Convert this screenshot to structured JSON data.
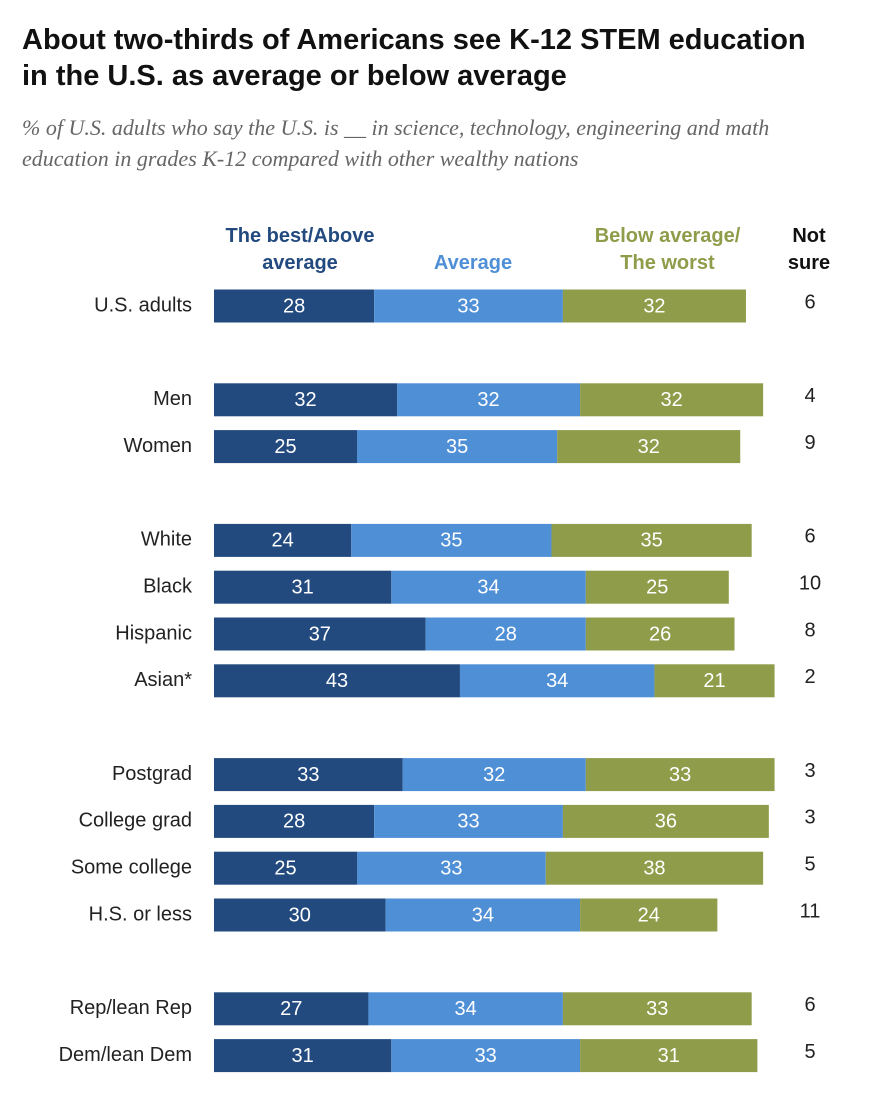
{
  "chart_data": {
    "type": "stacked-bar",
    "title": "About two-thirds of Americans see K-12 STEM education in the U.S. as average or below average",
    "subtitle": "% of U.S. adults who say the U.S. is __ in science, technology, engineering and math education in grades K-12 compared with other wealthy nations",
    "categories": [
      "U.S. adults",
      "Men",
      "Women",
      "White",
      "Black",
      "Hispanic",
      "Asian*",
      "Postgrad",
      "College grad",
      "Some college",
      "H.S. or less",
      "Rep/lean Rep",
      "Dem/lean Dem"
    ],
    "series": [
      {
        "name": "The best/Above average",
        "color": "#234a7f",
        "values": [
          28,
          32,
          25,
          24,
          31,
          37,
          43,
          33,
          28,
          25,
          30,
          27,
          31
        ]
      },
      {
        "name": "Average",
        "color": "#4f8fd6",
        "values": [
          33,
          32,
          35,
          35,
          34,
          28,
          34,
          32,
          33,
          33,
          34,
          34,
          33
        ]
      },
      {
        "name": "Below average/ The worst",
        "color": "#8f9c4a",
        "values": [
          32,
          32,
          32,
          35,
          25,
          26,
          21,
          33,
          36,
          38,
          24,
          33,
          31
        ]
      }
    ],
    "not_sure": {
      "name": "Not sure",
      "values": [
        6,
        4,
        9,
        6,
        10,
        8,
        2,
        3,
        3,
        5,
        11,
        6,
        5
      ]
    },
    "xlim": [
      0,
      100
    ]
  }
}
